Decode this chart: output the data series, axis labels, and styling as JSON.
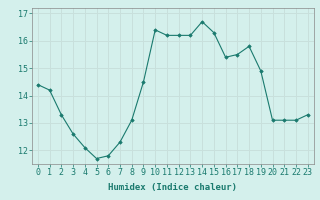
{
  "x": [
    0,
    1,
    2,
    3,
    4,
    5,
    6,
    7,
    8,
    9,
    10,
    11,
    12,
    13,
    14,
    15,
    16,
    17,
    18,
    19,
    20,
    21,
    22,
    23
  ],
  "y": [
    14.4,
    14.2,
    13.3,
    12.6,
    12.1,
    11.7,
    11.8,
    12.3,
    13.1,
    14.5,
    16.4,
    16.2,
    16.2,
    16.2,
    16.7,
    16.3,
    15.4,
    15.5,
    15.8,
    14.9,
    13.1,
    13.1,
    13.1,
    13.3
  ],
  "xlim": [
    -0.5,
    23.5
  ],
  "ylim": [
    11.5,
    17.2
  ],
  "yticks": [
    12,
    13,
    14,
    15,
    16,
    17
  ],
  "xticks": [
    0,
    1,
    2,
    3,
    4,
    5,
    6,
    7,
    8,
    9,
    10,
    11,
    12,
    13,
    14,
    15,
    16,
    17,
    18,
    19,
    20,
    21,
    22,
    23
  ],
  "xlabel": "Humidex (Indice chaleur)",
  "line_color": "#1a7a6e",
  "marker": "D",
  "marker_size": 1.8,
  "bg_color": "#d4f0ec",
  "grid_color": "#c8e0dc",
  "tick_color": "#1a7a6e",
  "label_fontsize": 6.0,
  "xlabel_fontsize": 6.5
}
